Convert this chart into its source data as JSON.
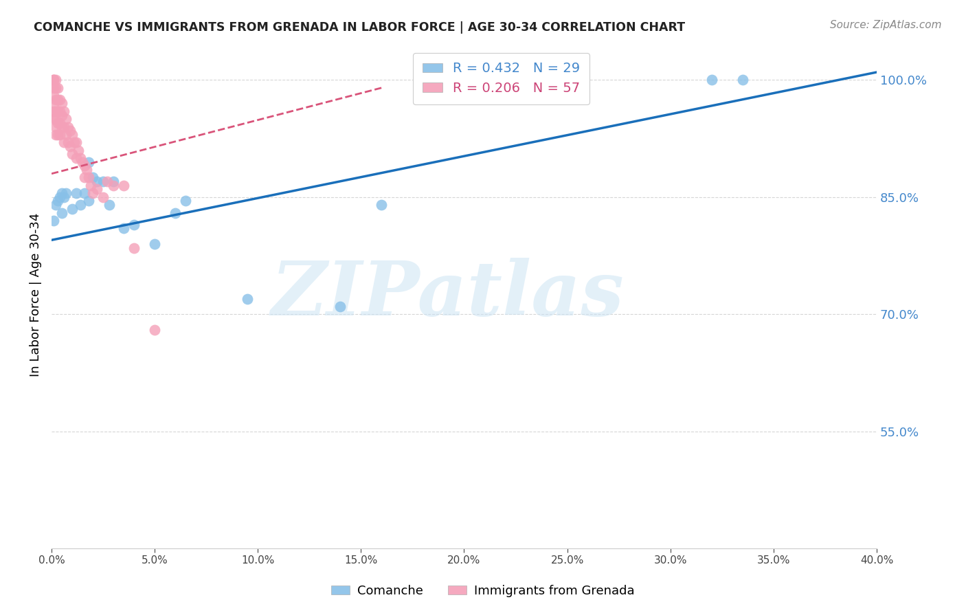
{
  "title": "COMANCHE VS IMMIGRANTS FROM GRENADA IN LABOR FORCE | AGE 30-34 CORRELATION CHART",
  "source": "Source: ZipAtlas.com",
  "ylabel": "In Labor Force | Age 30-34",
  "xlim": [
    0.0,
    0.4
  ],
  "ylim": [
    0.4,
    1.05
  ],
  "yticks": [
    0.55,
    0.7,
    0.85,
    1.0
  ],
  "xticks": [
    0.0,
    0.05,
    0.1,
    0.15,
    0.2,
    0.25,
    0.3,
    0.35,
    0.4
  ],
  "blue_R": 0.432,
  "blue_N": 29,
  "pink_R": 0.206,
  "pink_N": 57,
  "blue_color": "#88c0e8",
  "pink_color": "#f4a0b8",
  "blue_line_color": "#1a6fba",
  "pink_line_color": "#d9547a",
  "legend_blue_label": "Comanche",
  "legend_pink_label": "Immigrants from Grenada",
  "watermark": "ZIPatlas",
  "blue_x": [
    0.001,
    0.002,
    0.003,
    0.004,
    0.005,
    0.005,
    0.006,
    0.007,
    0.01,
    0.012,
    0.014,
    0.016,
    0.018,
    0.018,
    0.02,
    0.022,
    0.025,
    0.028,
    0.03,
    0.035,
    0.04,
    0.05,
    0.06,
    0.065,
    0.095,
    0.14,
    0.16,
    0.32,
    0.335
  ],
  "blue_y": [
    0.82,
    0.84,
    0.845,
    0.85,
    0.855,
    0.83,
    0.85,
    0.855,
    0.835,
    0.855,
    0.84,
    0.855,
    0.845,
    0.895,
    0.875,
    0.87,
    0.87,
    0.84,
    0.87,
    0.81,
    0.815,
    0.79,
    0.83,
    0.845,
    0.72,
    0.71,
    0.84,
    1.0,
    1.0
  ],
  "pink_x": [
    0.001,
    0.001,
    0.001,
    0.001,
    0.001,
    0.001,
    0.001,
    0.001,
    0.002,
    0.002,
    0.002,
    0.002,
    0.002,
    0.002,
    0.002,
    0.003,
    0.003,
    0.003,
    0.003,
    0.003,
    0.004,
    0.004,
    0.004,
    0.004,
    0.005,
    0.005,
    0.005,
    0.006,
    0.006,
    0.006,
    0.007,
    0.007,
    0.008,
    0.008,
    0.009,
    0.009,
    0.01,
    0.01,
    0.011,
    0.012,
    0.012,
    0.013,
    0.014,
    0.015,
    0.016,
    0.016,
    0.017,
    0.018,
    0.019,
    0.02,
    0.022,
    0.025,
    0.027,
    0.03,
    0.035,
    0.04,
    0.05
  ],
  "pink_y": [
    1.0,
    1.0,
    1.0,
    0.99,
    0.98,
    0.97,
    0.96,
    0.95,
    1.0,
    0.99,
    0.975,
    0.96,
    0.95,
    0.94,
    0.93,
    0.99,
    0.975,
    0.96,
    0.945,
    0.93,
    0.975,
    0.96,
    0.945,
    0.93,
    0.97,
    0.955,
    0.94,
    0.96,
    0.94,
    0.92,
    0.95,
    0.93,
    0.94,
    0.92,
    0.935,
    0.915,
    0.93,
    0.905,
    0.92,
    0.92,
    0.9,
    0.91,
    0.9,
    0.895,
    0.89,
    0.875,
    0.885,
    0.875,
    0.865,
    0.855,
    0.86,
    0.85,
    0.87,
    0.865,
    0.865,
    0.785,
    0.68
  ],
  "blue_trend_x": [
    0.0,
    0.4
  ],
  "blue_trend_y": [
    0.795,
    1.01
  ],
  "pink_trend_x": [
    0.0,
    0.16
  ],
  "pink_trend_y": [
    0.88,
    0.99
  ]
}
